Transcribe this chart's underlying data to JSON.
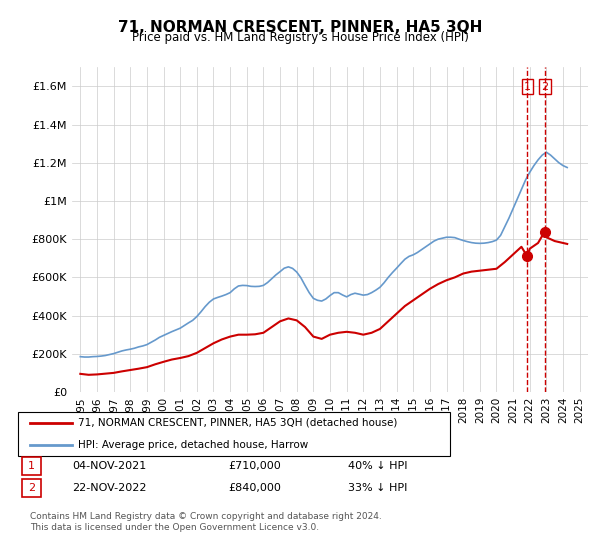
{
  "title": "71, NORMAN CRESCENT, PINNER, HA5 3QH",
  "subtitle": "Price paid vs. HM Land Registry's House Price Index (HPI)",
  "legend_label_red": "71, NORMAN CRESCENT, PINNER, HA5 3QH (detached house)",
  "legend_label_blue": "HPI: Average price, detached house, Harrow",
  "annotation1_label": "1",
  "annotation1_date": "04-NOV-2021",
  "annotation1_price": "£710,000",
  "annotation1_hpi": "40% ↓ HPI",
  "annotation2_label": "2",
  "annotation2_date": "22-NOV-2022",
  "annotation2_price": "£840,000",
  "annotation2_hpi": "33% ↓ HPI",
  "footer": "Contains HM Land Registry data © Crown copyright and database right 2024.\nThis data is licensed under the Open Government Licence v3.0.",
  "red_color": "#cc0000",
  "blue_color": "#6699cc",
  "vline_color": "#cc0000",
  "ylim": [
    0,
    1700000
  ],
  "yticks": [
    0,
    200000,
    400000,
    600000,
    800000,
    1000000,
    1200000,
    1400000,
    1600000
  ],
  "ytick_labels": [
    "£0",
    "£200K",
    "£400K",
    "£600K",
    "£800K",
    "£1M",
    "£1.2M",
    "£1.4M",
    "£1.6M"
  ],
  "hpi_x": [
    1995.0,
    1995.25,
    1995.5,
    1995.75,
    1996.0,
    1996.25,
    1996.5,
    1996.75,
    1997.0,
    1997.25,
    1997.5,
    1997.75,
    1998.0,
    1998.25,
    1998.5,
    1998.75,
    1999.0,
    1999.25,
    1999.5,
    1999.75,
    2000.0,
    2000.25,
    2000.5,
    2000.75,
    2001.0,
    2001.25,
    2001.5,
    2001.75,
    2002.0,
    2002.25,
    2002.5,
    2002.75,
    2003.0,
    2003.25,
    2003.5,
    2003.75,
    2004.0,
    2004.25,
    2004.5,
    2004.75,
    2005.0,
    2005.25,
    2005.5,
    2005.75,
    2006.0,
    2006.25,
    2006.5,
    2006.75,
    2007.0,
    2007.25,
    2007.5,
    2007.75,
    2008.0,
    2008.25,
    2008.5,
    2008.75,
    2009.0,
    2009.25,
    2009.5,
    2009.75,
    2010.0,
    2010.25,
    2010.5,
    2010.75,
    2011.0,
    2011.25,
    2011.5,
    2011.75,
    2012.0,
    2012.25,
    2012.5,
    2012.75,
    2013.0,
    2013.25,
    2013.5,
    2013.75,
    2014.0,
    2014.25,
    2014.5,
    2014.75,
    2015.0,
    2015.25,
    2015.5,
    2015.75,
    2016.0,
    2016.25,
    2016.5,
    2016.75,
    2017.0,
    2017.25,
    2017.5,
    2017.75,
    2018.0,
    2018.25,
    2018.5,
    2018.75,
    2019.0,
    2019.25,
    2019.5,
    2019.75,
    2020.0,
    2020.25,
    2020.5,
    2020.75,
    2021.0,
    2021.25,
    2021.5,
    2021.75,
    2022.0,
    2022.25,
    2022.5,
    2022.75,
    2023.0,
    2023.25,
    2023.5,
    2023.75,
    2024.0,
    2024.25
  ],
  "hpi_y": [
    185000,
    183000,
    183000,
    185000,
    186000,
    188000,
    191000,
    196000,
    201000,
    208000,
    215000,
    220000,
    224000,
    229000,
    236000,
    241000,
    248000,
    260000,
    272000,
    286000,
    296000,
    306000,
    316000,
    325000,
    334000,
    348000,
    362000,
    375000,
    395000,
    420000,
    447000,
    470000,
    487000,
    495000,
    502000,
    510000,
    520000,
    540000,
    555000,
    558000,
    557000,
    553000,
    552000,
    553000,
    558000,
    573000,
    593000,
    613000,
    630000,
    648000,
    655000,
    647000,
    628000,
    598000,
    558000,
    520000,
    490000,
    480000,
    476000,
    487000,
    505000,
    520000,
    520000,
    508000,
    498000,
    510000,
    517000,
    512000,
    507000,
    510000,
    520000,
    533000,
    548000,
    572000,
    600000,
    625000,
    648000,
    672000,
    695000,
    710000,
    718000,
    730000,
    745000,
    760000,
    775000,
    790000,
    800000,
    805000,
    810000,
    810000,
    808000,
    800000,
    793000,
    787000,
    782000,
    779000,
    778000,
    779000,
    782000,
    787000,
    795000,
    820000,
    865000,
    910000,
    960000,
    1010000,
    1060000,
    1110000,
    1150000,
    1185000,
    1215000,
    1240000,
    1255000,
    1240000,
    1220000,
    1200000,
    1185000,
    1175000
  ],
  "red_x": [
    1995.0,
    1995.5,
    1996.0,
    1996.5,
    1997.0,
    1997.5,
    1998.0,
    1998.5,
    1999.0,
    1999.5,
    2000.0,
    2000.5,
    2001.0,
    2001.5,
    2002.0,
    2002.5,
    2003.0,
    2003.5,
    2004.0,
    2004.5,
    2005.0,
    2005.5,
    2006.0,
    2006.5,
    2007.0,
    2007.5,
    2008.0,
    2008.5,
    2009.0,
    2009.5,
    2010.0,
    2010.5,
    2011.0,
    2011.5,
    2012.0,
    2012.5,
    2013.0,
    2013.5,
    2014.0,
    2014.5,
    2015.0,
    2015.5,
    2016.0,
    2016.5,
    2017.0,
    2017.5,
    2018.0,
    2018.5,
    2019.0,
    2019.5,
    2020.0,
    2020.5,
    2021.0,
    2021.5,
    2021.85,
    2022.0,
    2022.5,
    2022.9,
    2023.0,
    2023.5,
    2024.0,
    2024.25
  ],
  "red_y": [
    95000,
    90000,
    92000,
    96000,
    100000,
    108000,
    115000,
    122000,
    130000,
    145000,
    158000,
    170000,
    178000,
    188000,
    205000,
    230000,
    255000,
    275000,
    290000,
    300000,
    300000,
    302000,
    310000,
    340000,
    370000,
    385000,
    375000,
    340000,
    290000,
    278000,
    300000,
    310000,
    315000,
    310000,
    300000,
    310000,
    330000,
    370000,
    410000,
    450000,
    480000,
    510000,
    540000,
    565000,
    585000,
    600000,
    620000,
    630000,
    635000,
    640000,
    645000,
    680000,
    720000,
    760000,
    710000,
    750000,
    780000,
    840000,
    810000,
    790000,
    780000,
    775000
  ],
  "vline1_x": 2021.85,
  "vline2_x": 2022.9,
  "marker1_y": 710000,
  "marker2_y": 840000,
  "xlim": [
    1994.5,
    2025.5
  ],
  "xticks": [
    1995,
    1996,
    1997,
    1998,
    1999,
    2000,
    2001,
    2002,
    2003,
    2004,
    2005,
    2006,
    2007,
    2008,
    2009,
    2010,
    2011,
    2012,
    2013,
    2014,
    2015,
    2016,
    2017,
    2018,
    2019,
    2020,
    2021,
    2022,
    2023,
    2024,
    2025
  ]
}
